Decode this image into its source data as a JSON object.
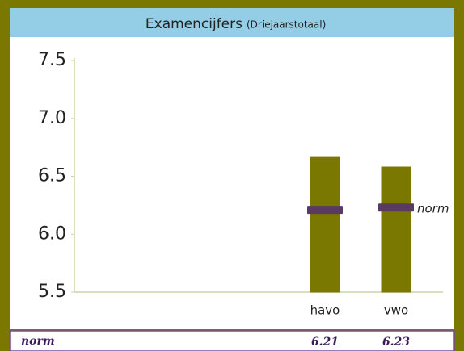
{
  "chart_data": {
    "type": "bar",
    "title": "Examencijfers",
    "subtitle": "(Driejaarstotaal)",
    "categories": [
      null,
      null,
      null,
      "havo",
      "vwo"
    ],
    "series": [
      {
        "name": "Examencijfers",
        "color": "#7a7800",
        "values": [
          5.5,
          5.5,
          5.5,
          6.67,
          6.58
        ]
      },
      {
        "name": "norm",
        "color": "#5a3a62",
        "values": [
          null,
          null,
          null,
          6.21,
          6.23
        ]
      }
    ],
    "annotation": "norm",
    "ylim": [
      5.5,
      7.5
    ],
    "yticks": [
      5.5,
      {
        "value": 6,
        "label": "6.0"
      },
      6.5,
      {
        "value": 7,
        "label": "7.0"
      },
      7.5
    ],
    "grid": false
  }
}
